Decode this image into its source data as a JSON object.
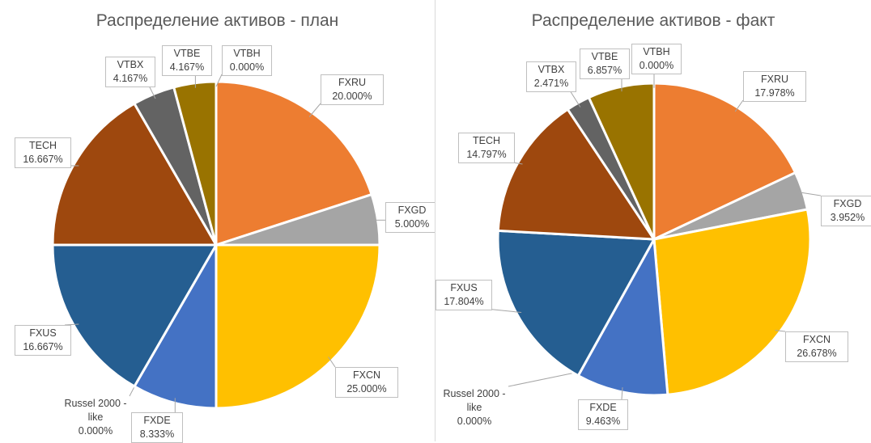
{
  "colors": {
    "FXRU": "#ED7D31",
    "FXGD": "#A5A5A5",
    "FXCN": "#FFC000",
    "FXDE": "#4472C4",
    "Russel 2000 - like": "#70AD47",
    "FXUS": "#255E91",
    "TECH": "#9E480E",
    "VTBX": "#636363",
    "VTBE": "#997300",
    "VTBH": "#264478"
  },
  "chart_data": [
    {
      "type": "pie",
      "title": "Распределение активов - план",
      "slices": [
        {
          "label": "FXRU",
          "value": 20.0,
          "display": "20.000%"
        },
        {
          "label": "FXGD",
          "value": 5.0,
          "display": "5.000%"
        },
        {
          "label": "FXCN",
          "value": 25.0,
          "display": "25.000%"
        },
        {
          "label": "FXDE",
          "value": 8.333,
          "display": "8.333%"
        },
        {
          "label": "Russel 2000 - like",
          "value": 0.0,
          "display": "0.000%"
        },
        {
          "label": "FXUS",
          "value": 16.667,
          "display": "16.667%"
        },
        {
          "label": "TECH",
          "value": 16.667,
          "display": "16.667%"
        },
        {
          "label": "VTBX",
          "value": 4.167,
          "display": "4.167%"
        },
        {
          "label": "VTBE",
          "value": 4.167,
          "display": "4.167%"
        },
        {
          "label": "VTBH",
          "value": 0.0,
          "display": "0.000%"
        }
      ]
    },
    {
      "type": "pie",
      "title": "Распределение активов - факт",
      "slices": [
        {
          "label": "FXRU",
          "value": 17.978,
          "display": "17.978%"
        },
        {
          "label": "FXGD",
          "value": 3.952,
          "display": "3.952%"
        },
        {
          "label": "FXCN",
          "value": 26.678,
          "display": "26.678%"
        },
        {
          "label": "FXDE",
          "value": 9.463,
          "display": "9.463%"
        },
        {
          "label": "Russel 2000 - like",
          "value": 0.0,
          "display": "0.000%"
        },
        {
          "label": "FXUS",
          "value": 17.804,
          "display": "17.804%"
        },
        {
          "label": "TECH",
          "value": 14.797,
          "display": "14.797%"
        },
        {
          "label": "VTBX",
          "value": 2.471,
          "display": "2.471%"
        },
        {
          "label": "VTBE",
          "value": 6.857,
          "display": "6.857%"
        },
        {
          "label": "VTBH",
          "value": 0.0,
          "display": "0.000%"
        }
      ]
    }
  ]
}
